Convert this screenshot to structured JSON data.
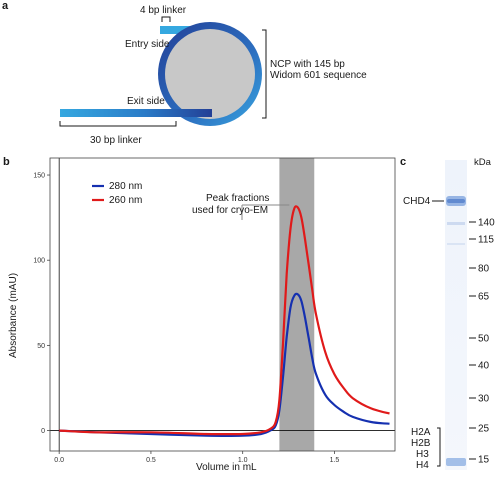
{
  "panel_a": {
    "letter": "a",
    "linker_top": "4 bp linker",
    "entry_side": "Entry side",
    "exit_side": "Exit side",
    "ncp_line1": "NCP with 145 bp",
    "ncp_line2": "Widom 601 sequence",
    "linker_bottom": "30 bp linker",
    "colors": {
      "dna_light": "#35a8e0",
      "dna_dark": "#233f96",
      "histone": "#c8c8c8"
    }
  },
  "panel_b": {
    "letter": "b",
    "annotation_line1": "Peak fractions",
    "annotation_line2": "used for cryo-EM"
  },
  "chart_data": {
    "type": "line",
    "xlabel": "Volume in mL",
    "ylabel": "Absorbance (mAU)",
    "xlim": [
      -0.05,
      1.83
    ],
    "ylim": [
      -12,
      160
    ],
    "x_ticks": [
      0,
      0.5,
      1.0,
      1.5
    ],
    "x_tick_labels": [
      "0.0",
      "0.5",
      "1.0",
      "1.5"
    ],
    "y_ticks": [
      0,
      50,
      100,
      150
    ],
    "y_tick_labels": [
      "0",
      "50",
      "100",
      "150"
    ],
    "legend_position": "top-left",
    "shaded_region": [
      1.2,
      1.39
    ],
    "series": [
      {
        "name": "280 nm",
        "color": "#1530b0",
        "x": [
          0,
          0.2,
          0.5,
          0.8,
          1.0,
          1.1,
          1.15,
          1.18,
          1.2,
          1.22,
          1.24,
          1.26,
          1.28,
          1.3,
          1.32,
          1.34,
          1.36,
          1.38,
          1.4,
          1.45,
          1.5,
          1.55,
          1.6,
          1.7,
          1.8
        ],
        "values": [
          0,
          -1,
          -2,
          -3,
          -3,
          -2,
          0,
          3,
          12,
          32,
          55,
          72,
          79,
          80,
          76,
          66,
          54,
          42,
          33,
          21,
          15,
          11,
          8,
          5,
          4
        ]
      },
      {
        "name": "260 nm",
        "color": "#e01a1a",
        "x": [
          0,
          0.2,
          0.5,
          0.8,
          1.0,
          1.1,
          1.15,
          1.18,
          1.2,
          1.22,
          1.24,
          1.26,
          1.28,
          1.3,
          1.32,
          1.34,
          1.36,
          1.38,
          1.4,
          1.45,
          1.5,
          1.55,
          1.6,
          1.7,
          1.8
        ],
        "values": [
          0,
          -1,
          -1,
          -2,
          -2,
          -1,
          1,
          5,
          18,
          52,
          92,
          118,
          130,
          131,
          125,
          112,
          97,
          82,
          68,
          46,
          33,
          25,
          19,
          13,
          10
        ]
      }
    ]
  },
  "panel_c": {
    "letter": "c",
    "unit": "kDa",
    "band_label_chd4": "CHD4",
    "markers": [
      "140",
      "115",
      "80",
      "65",
      "50",
      "40",
      "30",
      "25",
      "15"
    ],
    "histones": [
      "H2A",
      "H2B",
      "H3",
      "H4"
    ]
  }
}
